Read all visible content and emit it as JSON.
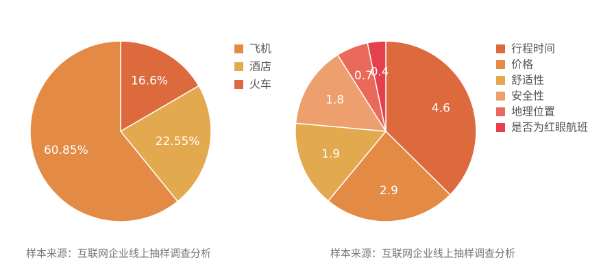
{
  "chart_data": [
    {
      "type": "pie",
      "title": "",
      "slices": [
        {
          "label": "火车",
          "value": 16.6,
          "display": "16.6%",
          "color": "#dc6a3c"
        },
        {
          "label": "酒店",
          "value": 22.55,
          "display": "22.55%",
          "color": "#e2a94f"
        },
        {
          "label": "飞机",
          "value": 60.85,
          "display": "60.85%",
          "color": "#e38a45"
        }
      ],
      "legend": [
        {
          "label": "飞机",
          "color": "#e38a45"
        },
        {
          "label": "酒店",
          "color": "#e2a94f"
        },
        {
          "label": "火车",
          "color": "#dc6a3c"
        }
      ],
      "legend_position": "right",
      "source": "样本来源：互联网企业线上抽样调查分析"
    },
    {
      "type": "pie",
      "title": "",
      "slices": [
        {
          "label": "行程时间",
          "value": 4.6,
          "display": "4.6",
          "color": "#dc6a3c"
        },
        {
          "label": "价格",
          "value": 2.9,
          "display": "2.9",
          "color": "#e38a45"
        },
        {
          "label": "舒适性",
          "value": 1.9,
          "display": "1.9",
          "color": "#e2a94f"
        },
        {
          "label": "安全性",
          "value": 1.8,
          "display": "1.8",
          "color": "#eda06e"
        },
        {
          "label": "地理位置",
          "value": 0.7,
          "display": "0.7",
          "color": "#e96a5b"
        },
        {
          "label": "是否为红眼航班",
          "value": 0.4,
          "display": "0.4",
          "color": "#e4414d"
        }
      ],
      "legend": [
        {
          "label": "行程时间",
          "color": "#dc6a3c"
        },
        {
          "label": "价格",
          "color": "#e38a45"
        },
        {
          "label": "舒适性",
          "color": "#e2a94f"
        },
        {
          "label": "安全性",
          "color": "#eda06e"
        },
        {
          "label": "地理位置",
          "color": "#e96a5b"
        },
        {
          "label": "是否为红眼航班",
          "color": "#e4414d"
        }
      ],
      "legend_position": "right",
      "source": "样本来源：互联网企业线上抽样调查分析"
    }
  ]
}
